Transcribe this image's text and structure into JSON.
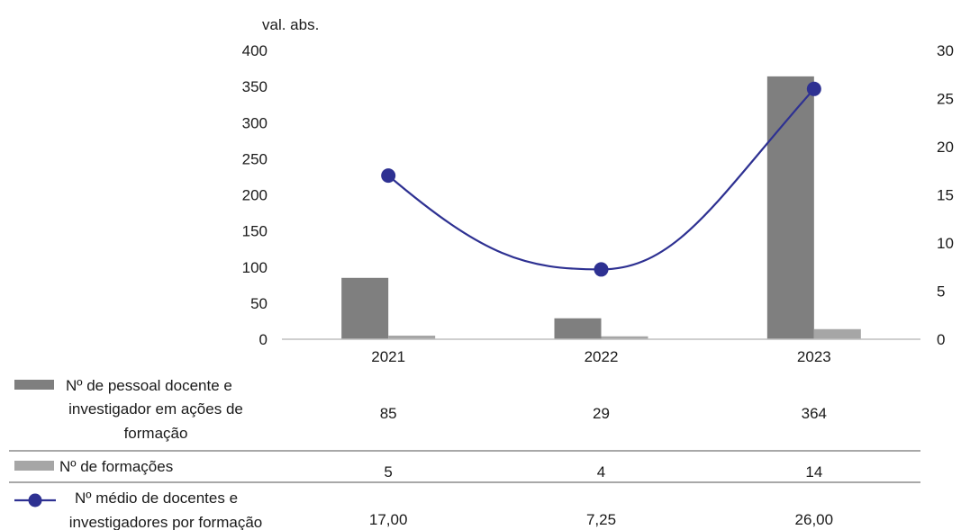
{
  "chart_data": {
    "type": "bar",
    "categories": [
      "2021",
      "2022",
      "2023"
    ],
    "y_left_label": "val. abs.",
    "y_left_range": [
      0,
      400
    ],
    "y_left_ticks": [
      0,
      50,
      100,
      150,
      200,
      250,
      300,
      350,
      400
    ],
    "y_right_range": [
      0,
      30
    ],
    "y_right_ticks": [
      0,
      5,
      10,
      15,
      20,
      25,
      30
    ],
    "grid": false,
    "legend": "data-table-below",
    "series": [
      {
        "name": "Nº de pessoal docente e investigador em ações de formação",
        "label_lines": [
          "Nº de pessoal docente e",
          "investigador em ações de",
          "formação"
        ],
        "type": "bar",
        "axis": "left",
        "color": "#7f7f7f",
        "values": [
          85,
          29,
          364
        ],
        "value_labels": [
          "85",
          "29",
          "364"
        ]
      },
      {
        "name": "Nº de formações",
        "label_lines": [
          "Nº de formações"
        ],
        "type": "bar",
        "axis": "left",
        "color": "#a6a6a6",
        "values": [
          5,
          4,
          14
        ],
        "value_labels": [
          "5",
          "4",
          "14"
        ]
      },
      {
        "name": "Nº médio de docentes e investigadores por formação",
        "label_lines": [
          "Nº médio de docentes e",
          "investigadores por formação"
        ],
        "type": "line",
        "axis": "right",
        "color": "#2e3192",
        "values": [
          17.0,
          7.25,
          26.0
        ],
        "value_labels": [
          "17,00",
          "7,25",
          "26,00"
        ]
      }
    ]
  }
}
